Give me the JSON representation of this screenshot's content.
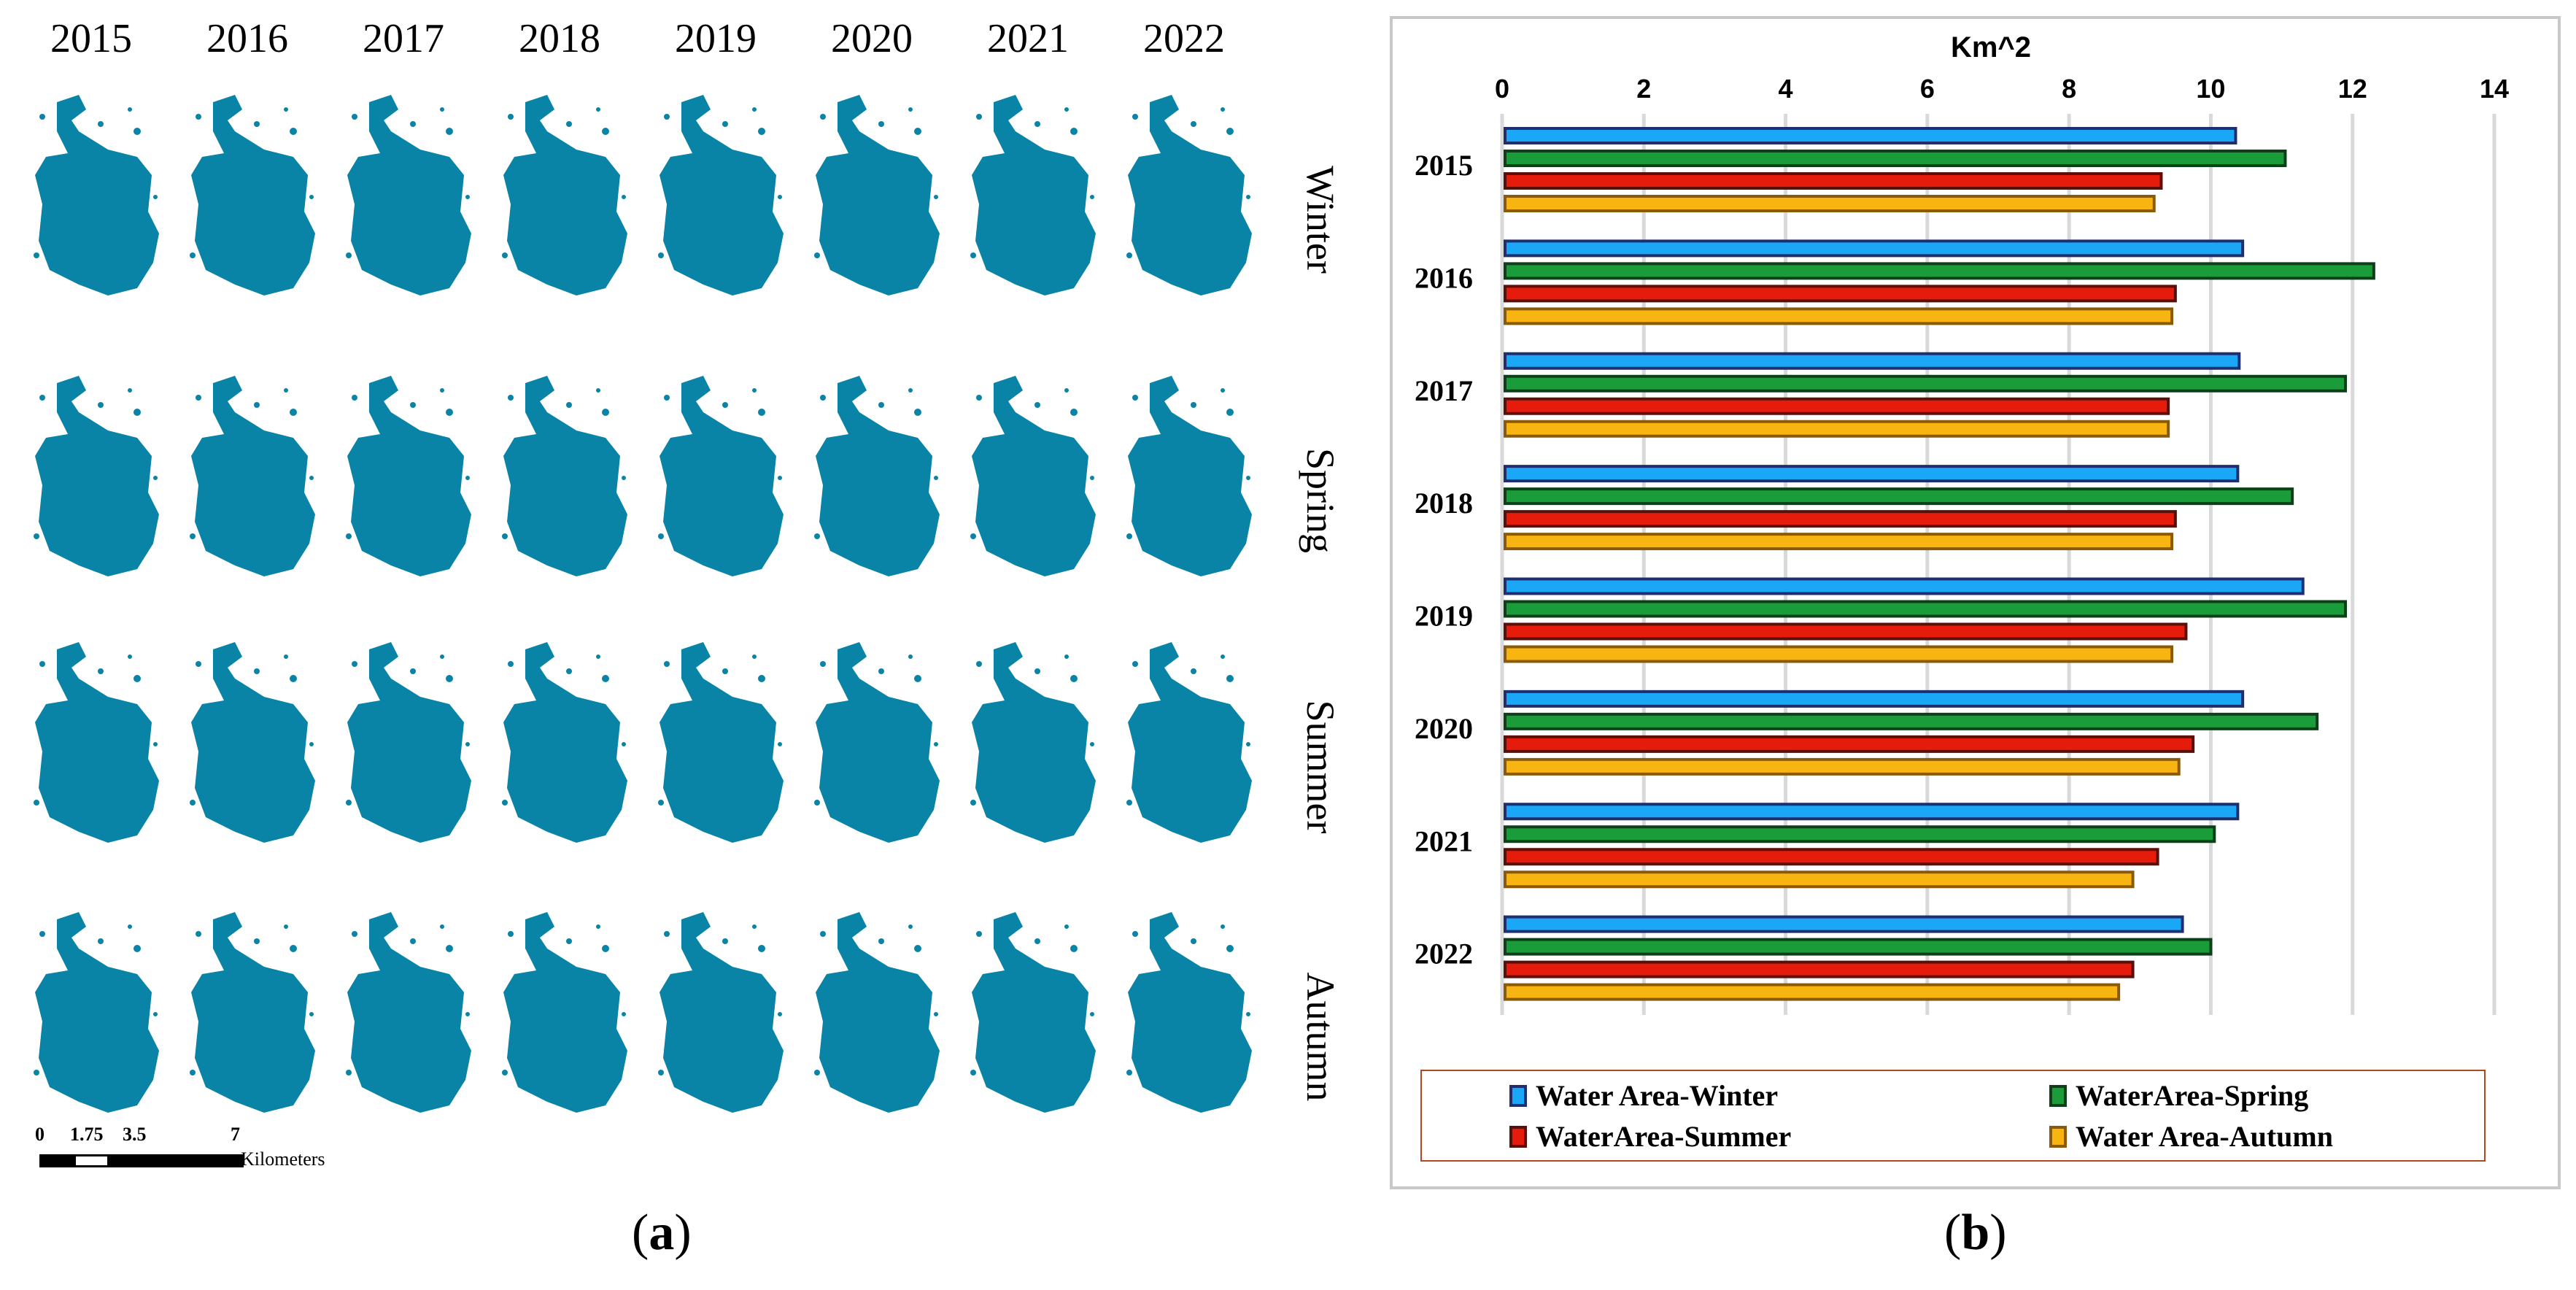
{
  "panel_a": {
    "years": [
      "2015",
      "2016",
      "2017",
      "2018",
      "2019",
      "2020",
      "2021",
      "2022"
    ],
    "seasons": [
      "Winter",
      "Spring",
      "Summer",
      "Autumn"
    ],
    "water_color": "#0a84a6",
    "scalebar": {
      "ticks": [
        "0",
        "1.75",
        "3.5",
        "7"
      ],
      "units": "Kilometers"
    },
    "caption": "a"
  },
  "panel_b": {
    "caption": "b",
    "colors": {
      "winter_fill": "#1aa7f5",
      "winter_border": "#1f2e6f",
      "spring_fill": "#1a9c3a",
      "spring_border": "#0d4018",
      "summer_fill": "#e51c0c",
      "summer_border": "#5a0f08",
      "autumn_fill": "#f8b511",
      "autumn_border": "#8a5a08"
    }
  },
  "chart_data": {
    "type": "bar",
    "orientation": "horizontal",
    "xlabel": "Km^2",
    "xlim": [
      0,
      14
    ],
    "xticks": [
      "0",
      "2",
      "4",
      "6",
      "8",
      "10",
      "12",
      "14"
    ],
    "grid": "vertical",
    "legend_position": "bottom",
    "categories": [
      "2015",
      "2016",
      "2017",
      "2018",
      "2019",
      "2020",
      "2021",
      "2022"
    ],
    "series": [
      {
        "name": "Water Area-Winter",
        "values": [
          10.35,
          10.45,
          10.4,
          10.38,
          11.3,
          10.45,
          10.38,
          9.6
        ]
      },
      {
        "name": "WaterArea-Spring",
        "values": [
          11.05,
          12.3,
          11.9,
          11.15,
          11.9,
          11.5,
          10.05,
          10.0
        ]
      },
      {
        "name": "WaterArea-Summer",
        "values": [
          9.3,
          9.5,
          9.4,
          9.5,
          9.65,
          9.75,
          9.25,
          8.9
        ]
      },
      {
        "name": "Water Area-Autumn",
        "values": [
          9.2,
          9.45,
          9.4,
          9.45,
          9.45,
          9.55,
          8.9,
          8.7
        ]
      }
    ]
  }
}
